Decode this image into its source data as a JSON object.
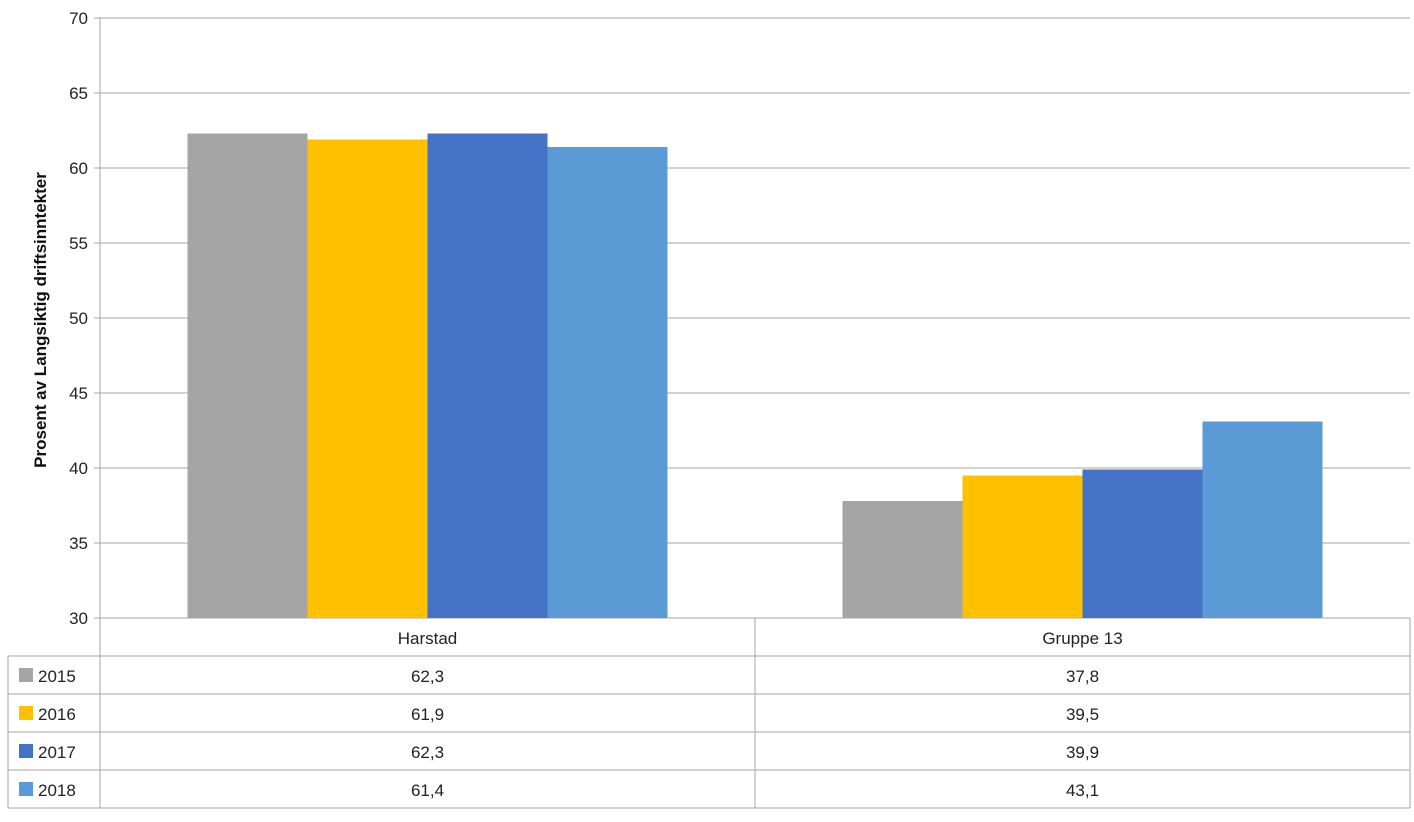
{
  "chart_data": {
    "type": "bar",
    "title": "",
    "xlabel": "",
    "ylabel": "Prosent av Langsiktig driftsinntekter",
    "ylim": [
      30,
      70
    ],
    "yticks": [
      "30",
      "35",
      "40",
      "45",
      "50",
      "55",
      "60",
      "65",
      "70"
    ],
    "ytick_values": [
      30,
      35,
      40,
      45,
      50,
      55,
      60,
      65,
      70
    ],
    "grid": true,
    "legend_placement": "data-table-left",
    "categories": [
      "Harstad",
      "Gruppe 13"
    ],
    "series": [
      {
        "name": "2015",
        "values": [
          62.3,
          37.8
        ],
        "labels": [
          "62,3",
          "37,8"
        ],
        "color": "#a5a5a5"
      },
      {
        "name": "2016",
        "values": [
          61.9,
          39.5
        ],
        "labels": [
          "61,9",
          "39,5"
        ],
        "color": "#ffc000"
      },
      {
        "name": "2017",
        "values": [
          62.3,
          39.9
        ],
        "labels": [
          "62,3",
          "39,9"
        ],
        "color": "#4472c4"
      },
      {
        "name": "2018",
        "values": [
          61.4,
          43.1
        ],
        "labels": [
          "61,4",
          "43,1"
        ],
        "color": "#5b9bd5"
      }
    ]
  }
}
